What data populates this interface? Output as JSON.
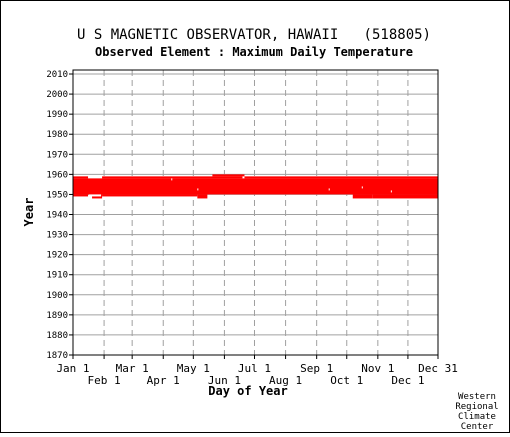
{
  "chart_data": {
    "type": "heatmap",
    "title": "U S MAGNETIC OBSERVATOR, HAWAII   (518805)",
    "subtitle": "Observed Element : Maximum Daily Temperature",
    "xlabel": "Day of Year",
    "ylabel": "Year",
    "ylim": [
      1870,
      2012
    ],
    "xlim": [
      1,
      365
    ],
    "grid": true,
    "yticks": [
      1870,
      1880,
      1890,
      1900,
      1910,
      1920,
      1930,
      1940,
      1950,
      1960,
      1970,
      1980,
      1990,
      2000,
      2010
    ],
    "xticks_upper": [
      {
        "label": "Jan 1",
        "day": 1
      },
      {
        "label": "Mar 1",
        "day": 60
      },
      {
        "label": "May 1",
        "day": 121
      },
      {
        "label": "Jul 1",
        "day": 182
      },
      {
        "label": "Sep 1",
        "day": 244
      },
      {
        "label": "Nov 1",
        "day": 305
      },
      {
        "label": "Dec 31",
        "day": 365
      }
    ],
    "xticks_lower": [
      {
        "label": "Feb 1",
        "day": 32
      },
      {
        "label": "Apr 1",
        "day": 91
      },
      {
        "label": "Jun 1",
        "day": 152
      },
      {
        "label": "Aug 1",
        "day": 213
      },
      {
        "label": "Oct 1",
        "day": 274
      },
      {
        "label": "Dec 1",
        "day": 335
      }
    ],
    "grid_days": [
      32,
      60,
      91,
      121,
      152,
      182,
      213,
      244,
      274,
      305,
      335
    ],
    "data_color": "#ff0000",
    "observed_blocks": [
      {
        "day_start": 1,
        "day_end": 365,
        "year_start": 1950,
        "year_end": 1958
      },
      {
        "day_start": 1,
        "day_end": 16,
        "year_start": 1958,
        "year_end": 1959
      },
      {
        "day_start": 30,
        "day_end": 170,
        "year_start": 1958,
        "year_end": 1959
      },
      {
        "day_start": 140,
        "day_end": 172,
        "year_start": 1959,
        "year_end": 1960
      },
      {
        "day_start": 172,
        "day_end": 365,
        "year_start": 1958,
        "year_end": 1959
      },
      {
        "day_start": 1,
        "day_end": 16,
        "year_start": 1949,
        "year_end": 1950
      },
      {
        "day_start": 20,
        "day_end": 30,
        "year_start": 1948,
        "year_end": 1950
      },
      {
        "day_start": 30,
        "day_end": 125,
        "year_start": 1949,
        "year_end": 1950
      },
      {
        "day_start": 125,
        "day_end": 135,
        "year_start": 1948,
        "year_end": 1950
      },
      {
        "day_start": 280,
        "day_end": 300,
        "year_start": 1948,
        "year_end": 1950
      },
      {
        "day_start": 300,
        "day_end": 365,
        "year_start": 1948,
        "year_end": 1950
      }
    ],
    "gaps": [
      {
        "day_start": 17,
        "day_end": 29,
        "year_start": 1949,
        "year_end": 1950
      },
      {
        "day_start": 256,
        "day_end": 257,
        "year_start": 1952,
        "year_end": 1953
      },
      {
        "day_start": 289,
        "day_end": 290,
        "year_start": 1953,
        "year_end": 1954
      },
      {
        "day_start": 318,
        "day_end": 319,
        "year_start": 1951,
        "year_end": 1952
      },
      {
        "day_start": 125,
        "day_end": 126,
        "year_start": 1952,
        "year_end": 1953
      },
      {
        "day_start": 99,
        "day_end": 100,
        "year_start": 1957,
        "year_end": 1958
      }
    ]
  },
  "credit": [
    "Western",
    "Regional",
    "Climate",
    "Center"
  ]
}
